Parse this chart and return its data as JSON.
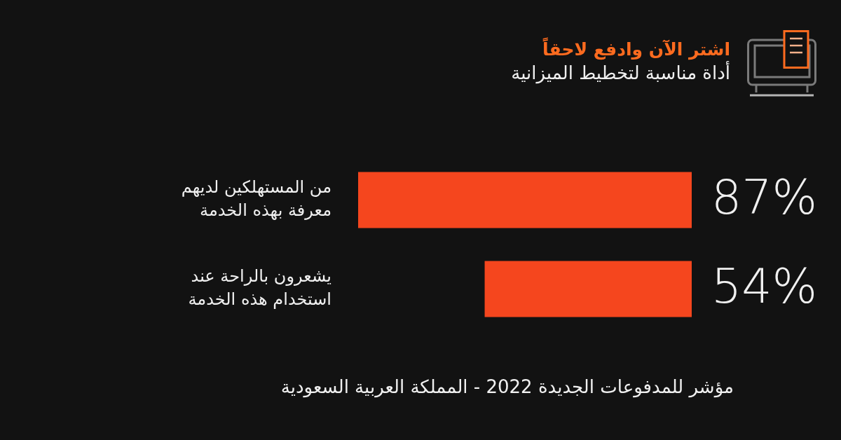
{
  "chart_data": {
    "type": "bar",
    "orientation": "horizontal",
    "title": "اشتر الآن وادفع لاحقاً",
    "subtitle": "أداة مناسبة لتخطيط الميزانية",
    "categories": [
      "من المستهلكين لديهم معرفة بهذه الخدمة",
      "يشعرون بالراحة عند استخدام هذه الخدمة"
    ],
    "values": [
      87,
      54
    ],
    "value_labels": [
      "87%",
      "54%"
    ],
    "color": "#f5461e",
    "tick_labels": "y",
    "annotations": [
      "مؤشر للمدفوعات الجديدة 2022 - المملكة العربية السعودية"
    ]
  }
}
